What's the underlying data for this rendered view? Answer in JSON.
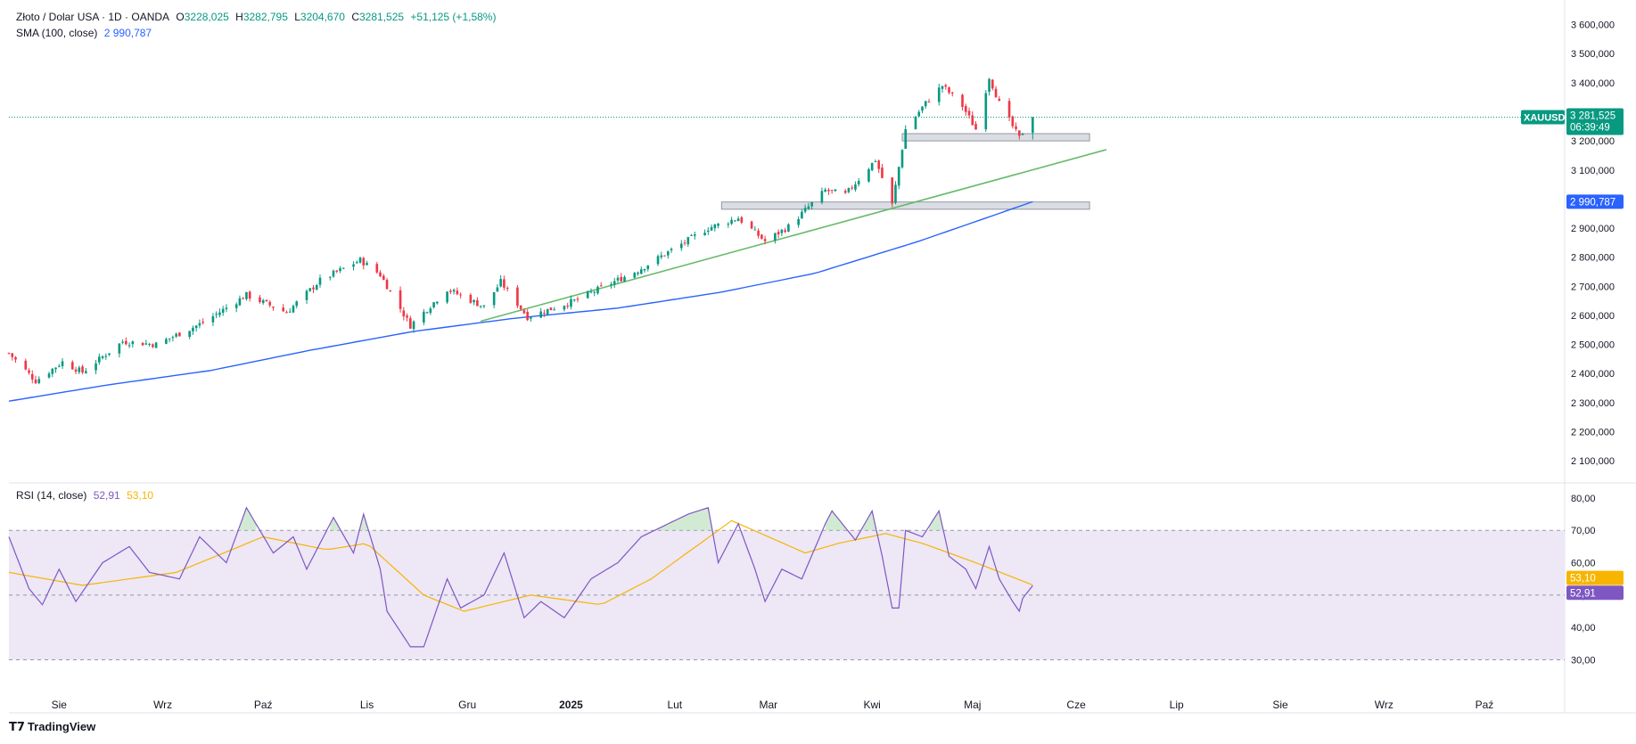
{
  "legend": {
    "symbol_title": "Złoto / Dolar USA · 1D · OANDA",
    "o_label": "O",
    "o_value": "3228,025",
    "h_label": "H",
    "h_value": "3282,795",
    "l_label": "L",
    "l_value": "3204,670",
    "c_label": "C",
    "c_value": "3281,525",
    "change": "+51,125 (+1,58%)",
    "sma_label": "SMA (100, close)",
    "sma_value": "2 990,787",
    "rsi_label": "RSI (14, close)",
    "rsi_value": "52,91",
    "rsi_ma_value": "53,10"
  },
  "price_tags": {
    "symbol": "XAUUSD",
    "last_price": "3 281,525",
    "countdown": "06:39:49",
    "sma": "2 990,787",
    "rsi_ma": "53,10",
    "rsi": "52,91"
  },
  "colors": {
    "up": "#089981",
    "down": "#f23645",
    "sma": "#2962ff",
    "trend": "#66bb6a",
    "rsi": "#7e57c2",
    "rsi_ma": "#f7b500",
    "rsi_band": "#ede7f6",
    "zone_fill": "#d1d4dc",
    "zone_stroke": "#9598a1"
  },
  "footer": {
    "brand": "TradingView",
    "brand_icon": "tradingview-logo-icon"
  },
  "chart_data": [
    {
      "type": "candlestick",
      "title": "Złoto / Dolar USA · 1D · OANDA",
      "x_axis_labels": [
        {
          "label": "Sie",
          "date": "2024-08-01",
          "bold": false
        },
        {
          "label": "Wrz",
          "date": "2024-09-01",
          "bold": false
        },
        {
          "label": "Paź",
          "date": "2024-10-01",
          "bold": false
        },
        {
          "label": "Lis",
          "date": "2024-11-01",
          "bold": false
        },
        {
          "label": "Gru",
          "date": "2024-12-01",
          "bold": false
        },
        {
          "label": "2025",
          "date": "2025-01-01",
          "bold": true
        },
        {
          "label": "Lut",
          "date": "2025-02-01",
          "bold": false
        },
        {
          "label": "Mar",
          "date": "2025-03-01",
          "bold": false
        },
        {
          "label": "Kwi",
          "date": "2025-04-01",
          "bold": false
        },
        {
          "label": "Maj",
          "date": "2025-05-01",
          "bold": false
        },
        {
          "label": "Cze",
          "date": "2025-06-01",
          "bold": false
        },
        {
          "label": "Lip",
          "date": "2025-07-01",
          "bold": false
        },
        {
          "label": "Sie",
          "date": "2025-08-01",
          "bold": false
        },
        {
          "label": "Wrz",
          "date": "2025-09-01",
          "bold": false
        },
        {
          "label": "Paź",
          "date": "2025-10-01",
          "bold": false
        }
      ],
      "x_range": [
        "2024-07-17",
        "2025-10-25"
      ],
      "y_range": [
        2030,
        3660
      ],
      "y_ticks": [
        {
          "v": 3600,
          "label": "3 600,000"
        },
        {
          "v": 3500,
          "label": "3 500,000"
        },
        {
          "v": 3400,
          "label": "3 400,000"
        },
        {
          "v": 3300,
          "label": "3 300,000"
        },
        {
          "v": 3200,
          "label": "3 200,000"
        },
        {
          "v": 3100,
          "label": "3 100,000"
        },
        {
          "v": 3000,
          "label": "3 000,000"
        },
        {
          "v": 2900,
          "label": "2 900,000"
        },
        {
          "v": 2800,
          "label": "2 800,000"
        },
        {
          "v": 2700,
          "label": "2 700,000"
        },
        {
          "v": 2600,
          "label": "2 600,000"
        },
        {
          "v": 2500,
          "label": "2 500,000"
        },
        {
          "v": 2400,
          "label": "2 400,000"
        },
        {
          "v": 2300,
          "label": "2 300,000"
        },
        {
          "v": 2200,
          "label": "2 200,000"
        },
        {
          "v": 2100,
          "label": "2 100,000"
        }
      ],
      "close_anchors": [
        [
          "2024-07-17",
          2470
        ],
        [
          "2024-07-25",
          2375
        ],
        [
          "2024-08-02",
          2440
        ],
        [
          "2024-08-08",
          2405
        ],
        [
          "2024-08-20",
          2510
        ],
        [
          "2024-08-30",
          2500
        ],
        [
          "2024-09-13",
          2575
        ],
        [
          "2024-09-26",
          2670
        ],
        [
          "2024-10-08",
          2610
        ],
        [
          "2024-10-18",
          2720
        ],
        [
          "2024-10-30",
          2790
        ],
        [
          "2024-11-05",
          2740
        ],
        [
          "2024-11-14",
          2565
        ],
        [
          "2024-11-25",
          2690
        ],
        [
          "2024-12-06",
          2630
        ],
        [
          "2024-12-11",
          2715
        ],
        [
          "2024-12-19",
          2595
        ],
        [
          "2025-01-02",
          2650
        ],
        [
          "2025-01-21",
          2755
        ],
        [
          "2025-02-11",
          2900
        ],
        [
          "2025-02-20",
          2935
        ],
        [
          "2025-02-28",
          2855
        ],
        [
          "2025-03-07",
          2905
        ],
        [
          "2025-03-18",
          3030
        ],
        [
          "2025-03-24",
          3015
        ],
        [
          "2025-04-02",
          3135
        ],
        [
          "2025-04-07",
          2980
        ],
        [
          "2025-04-11",
          3240
        ],
        [
          "2025-04-17",
          3330
        ],
        [
          "2025-04-22",
          3390
        ],
        [
          "2025-04-28",
          3320
        ],
        [
          "2025-05-02",
          3240
        ],
        [
          "2025-05-06",
          3420
        ],
        [
          "2025-05-09",
          3330
        ],
        [
          "2025-05-15",
          3210
        ],
        [
          "2025-05-16",
          3231
        ],
        [
          "2025-05-19",
          3281.525
        ]
      ],
      "last_candle": {
        "date": "2025-05-19",
        "open": 3228.025,
        "high": 3282.795,
        "low": 3204.67,
        "close": 3281.525
      },
      "last_price": 3281.525,
      "sma_100": {
        "name": "SMA (100, close)",
        "anchors": [
          [
            "2024-07-17",
            2305
          ],
          [
            "2024-08-15",
            2360
          ],
          [
            "2024-09-15",
            2410
          ],
          [
            "2024-10-15",
            2480
          ],
          [
            "2024-11-15",
            2545
          ],
          [
            "2024-12-15",
            2590
          ],
          [
            "2025-01-15",
            2625
          ],
          [
            "2025-02-15",
            2680
          ],
          [
            "2025-03-15",
            2745
          ],
          [
            "2025-04-15",
            2855
          ],
          [
            "2025-05-19",
            2990.787
          ]
        ],
        "last": 2990.787
      },
      "trendline": {
        "from": [
          "2024-12-05",
          2580
        ],
        "to": [
          "2025-06-10",
          3170
        ]
      },
      "zones": [
        {
          "from": "2025-04-10",
          "to": "2025-06-05",
          "low": 3200,
          "high": 3225
        },
        {
          "from": "2025-02-15",
          "to": "2025-06-05",
          "low": 2965,
          "high": 2990
        }
      ]
    },
    {
      "type": "line",
      "title": "RSI (14, close)",
      "y_range": [
        26,
        83
      ],
      "y_ticks": [
        {
          "v": 80,
          "label": "80,00"
        },
        {
          "v": 70,
          "label": "70,00"
        },
        {
          "v": 60,
          "label": "60,00"
        },
        {
          "v": 50,
          "label": "50,00"
        },
        {
          "v": 40,
          "label": "40,00"
        },
        {
          "v": 30,
          "label": "30,00"
        }
      ],
      "bands": {
        "upper": 70,
        "middle": 50,
        "lower": 30
      },
      "rsi_anchors": [
        [
          "2024-07-17",
          68
        ],
        [
          "2024-07-23",
          52
        ],
        [
          "2024-07-27",
          47
        ],
        [
          "2024-08-01",
          58
        ],
        [
          "2024-08-06",
          48
        ],
        [
          "2024-08-14",
          60
        ],
        [
          "2024-08-22",
          65
        ],
        [
          "2024-08-28",
          57
        ],
        [
          "2024-09-06",
          55
        ],
        [
          "2024-09-12",
          68
        ],
        [
          "2024-09-20",
          60
        ],
        [
          "2024-09-26",
          77
        ],
        [
          "2024-10-04",
          63
        ],
        [
          "2024-10-10",
          68
        ],
        [
          "2024-10-14",
          58
        ],
        [
          "2024-10-22",
          74
        ],
        [
          "2024-10-28",
          63
        ],
        [
          "2024-10-31",
          75
        ],
        [
          "2024-11-05",
          58
        ],
        [
          "2024-11-07",
          45
        ],
        [
          "2024-11-14",
          34
        ],
        [
          "2024-11-18",
          34
        ],
        [
          "2024-11-25",
          55
        ],
        [
          "2024-11-29",
          46
        ],
        [
          "2024-12-06",
          50
        ],
        [
          "2024-12-12",
          63
        ],
        [
          "2024-12-18",
          43
        ],
        [
          "2024-12-23",
          48
        ],
        [
          "2024-12-30",
          43
        ],
        [
          "2025-01-07",
          55
        ],
        [
          "2025-01-15",
          60
        ],
        [
          "2025-01-22",
          68
        ],
        [
          "2025-02-05",
          75
        ],
        [
          "2025-02-11",
          77
        ],
        [
          "2025-02-14",
          60
        ],
        [
          "2025-02-20",
          72
        ],
        [
          "2025-02-25",
          58
        ],
        [
          "2025-02-28",
          48
        ],
        [
          "2025-03-05",
          58
        ],
        [
          "2025-03-11",
          55
        ],
        [
          "2025-03-18",
          72
        ],
        [
          "2025-03-20",
          76
        ],
        [
          "2025-03-27",
          67
        ],
        [
          "2025-04-01",
          76
        ],
        [
          "2025-04-04",
          62
        ],
        [
          "2025-04-07",
          46
        ],
        [
          "2025-04-09",
          46
        ],
        [
          "2025-04-11",
          70
        ],
        [
          "2025-04-16",
          68
        ],
        [
          "2025-04-21",
          76
        ],
        [
          "2025-04-24",
          62
        ],
        [
          "2025-04-29",
          58
        ],
        [
          "2025-05-02",
          52
        ],
        [
          "2025-05-06",
          65
        ],
        [
          "2025-05-09",
          55
        ],
        [
          "2025-05-13",
          48
        ],
        [
          "2025-05-15",
          45
        ],
        [
          "2025-05-16",
          49
        ],
        [
          "2025-05-19",
          52.91
        ]
      ],
      "ma_anchors": [
        [
          "2024-07-17",
          57
        ],
        [
          "2024-08-08",
          53
        ],
        [
          "2024-09-05",
          57
        ],
        [
          "2024-10-01",
          68
        ],
        [
          "2024-10-20",
          64
        ],
        [
          "2024-11-01",
          66
        ],
        [
          "2024-11-18",
          50
        ],
        [
          "2024-11-30",
          45
        ],
        [
          "2024-12-20",
          50
        ],
        [
          "2025-01-10",
          47
        ],
        [
          "2025-01-25",
          55
        ],
        [
          "2025-02-18",
          73
        ],
        [
          "2025-03-12",
          63
        ],
        [
          "2025-03-22",
          66
        ],
        [
          "2025-04-05",
          69
        ],
        [
          "2025-04-16",
          66
        ],
        [
          "2025-05-02",
          60
        ],
        [
          "2025-05-19",
          53.1
        ]
      ],
      "rsi_last": 52.91,
      "ma_last": 53.1
    }
  ]
}
